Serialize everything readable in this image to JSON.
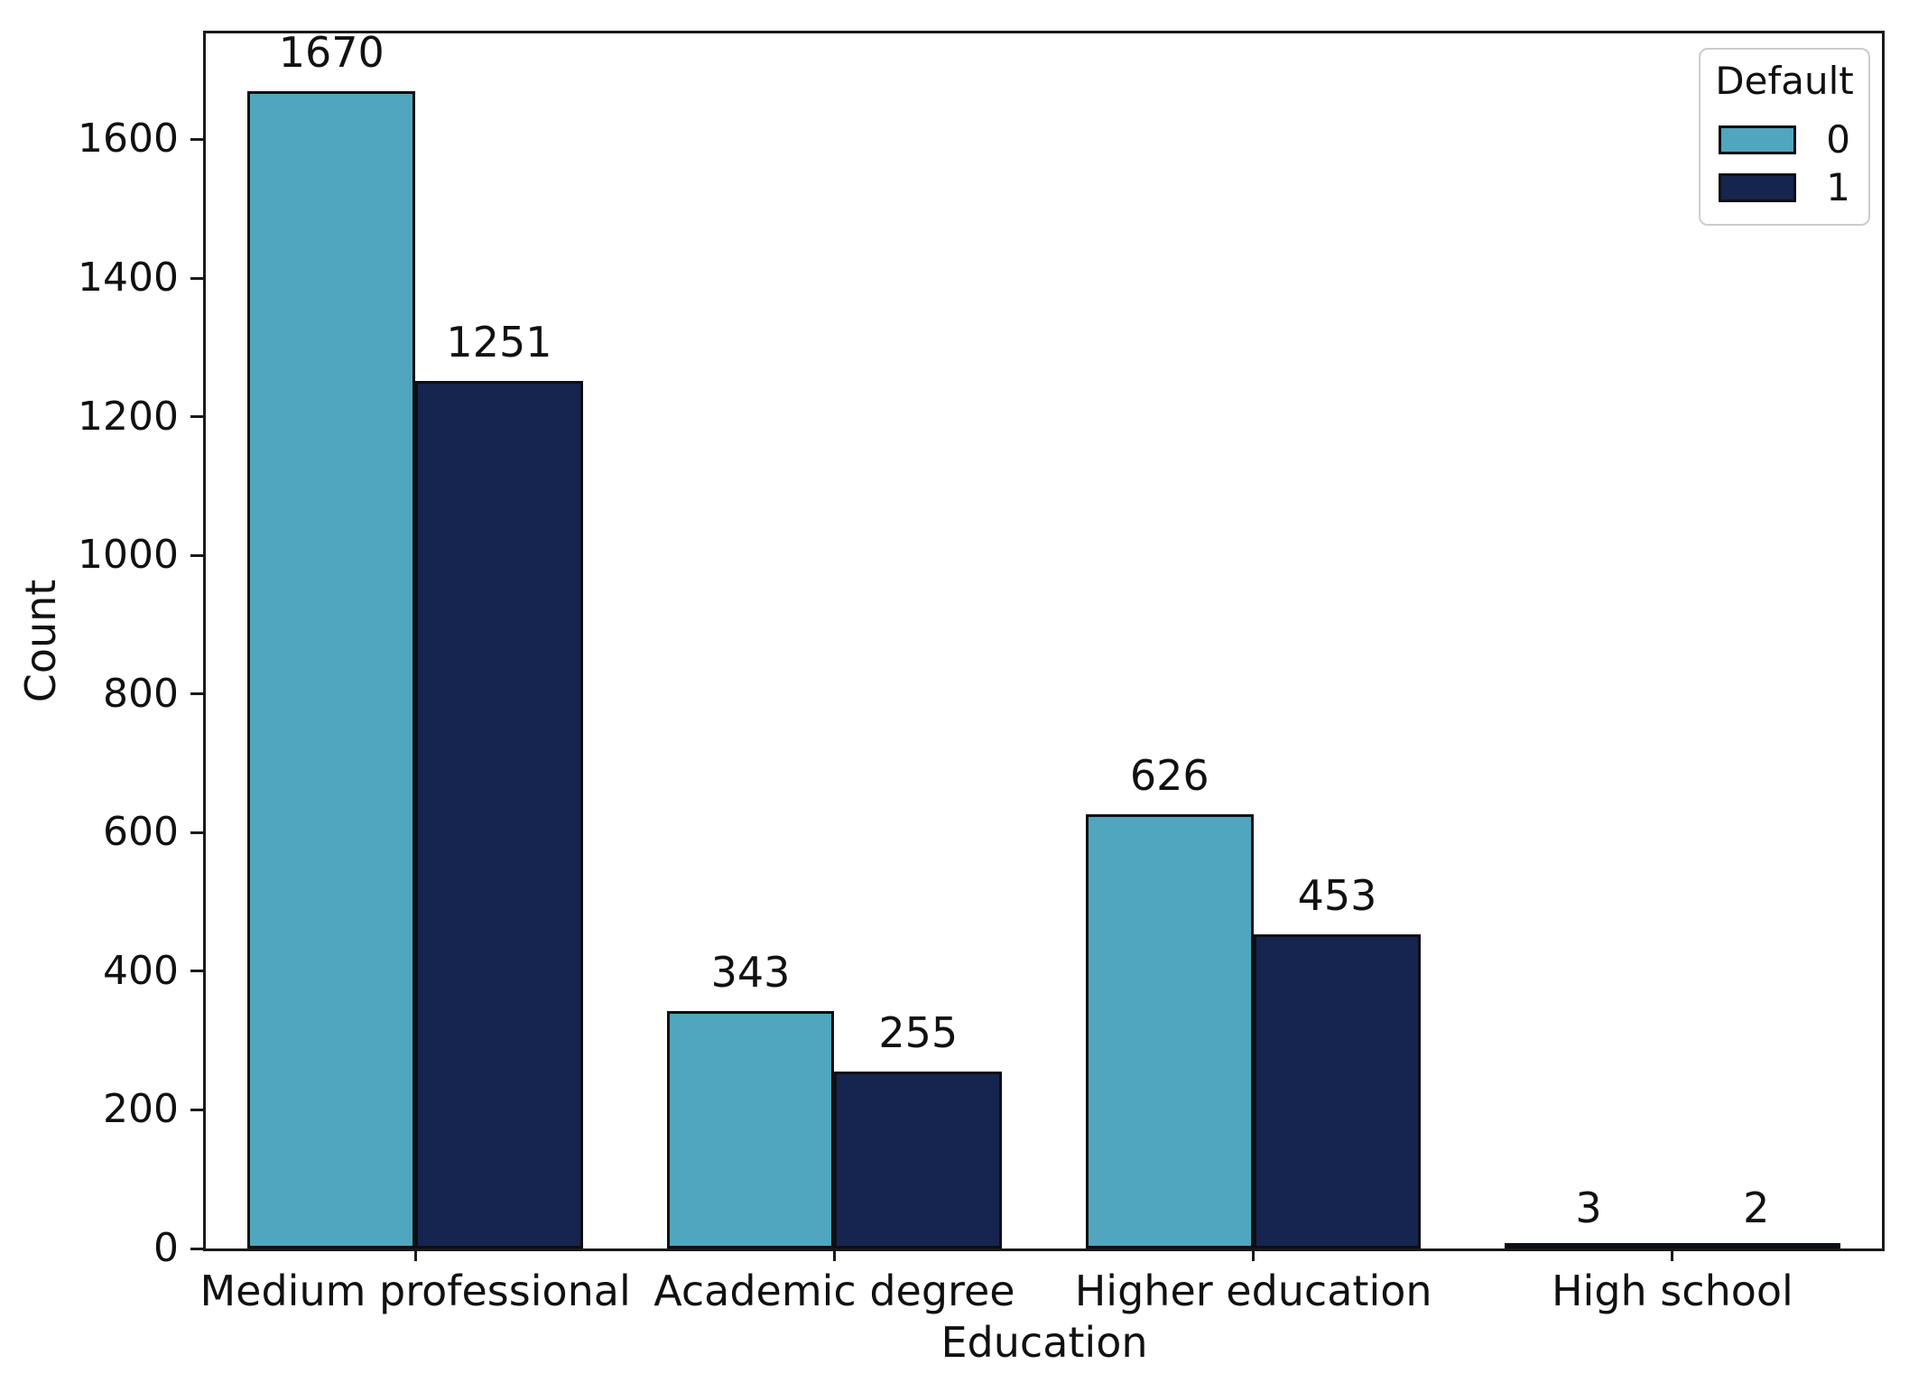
{
  "chart_data": {
    "type": "bar",
    "title": "",
    "xlabel": "Education",
    "ylabel": "Count",
    "categories": [
      "Medium professional",
      "Academic degree",
      "Higher education",
      "High school"
    ],
    "series": [
      {
        "name": "0",
        "color": "#50a6be",
        "values": [
          1670,
          343,
          626,
          3
        ]
      },
      {
        "name": "1",
        "color": "#15254f",
        "values": [
          1251,
          255,
          453,
          2
        ]
      }
    ],
    "bar_value_labels": [
      [
        "1670",
        "343",
        "626",
        "3"
      ],
      [
        "1251",
        "255",
        "453",
        "2"
      ]
    ],
    "y_ticks": [
      "0",
      "200",
      "400",
      "600",
      "800",
      "1000",
      "1200",
      "1400",
      "1600"
    ],
    "y_tick_values": [
      0,
      200,
      400,
      600,
      800,
      1000,
      1200,
      1400,
      1600
    ],
    "ylim": [
      0,
      1753
    ],
    "grid": false,
    "legend": {
      "title": "Default",
      "position": "upper right",
      "entries": [
        "0",
        "1"
      ]
    },
    "bar_edge_color": "#0d0f14",
    "axis_color": "#1a1a1a",
    "text_color": "#111111",
    "background_color": "#ffffff"
  }
}
